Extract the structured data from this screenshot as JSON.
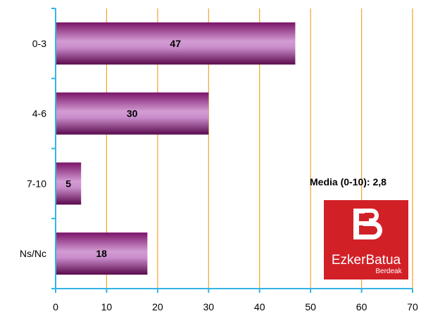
{
  "chart_data": {
    "type": "bar",
    "orientation": "horizontal",
    "categories": [
      "0-3",
      "4-6",
      "7-10",
      "Ns/Nc"
    ],
    "values": [
      47,
      30,
      5,
      18
    ],
    "data_labels": [
      "47",
      "30",
      "5",
      "18"
    ],
    "xlim": [
      0,
      70
    ],
    "x_ticks": [
      "0",
      "10",
      "20",
      "30",
      "40",
      "50",
      "60",
      "70"
    ],
    "grid": "vertical",
    "colors": {
      "bar_dark": "#6a0a58",
      "bar_light": "#c98ccb",
      "grid": "#f3a22b",
      "axis": "#35b4e6"
    }
  },
  "annotation": {
    "media_text": "Media (0-10): 2,8"
  },
  "logo": {
    "main_text": "EzkerBatua",
    "sub_text": "Berdeak",
    "color": "#d22027"
  }
}
